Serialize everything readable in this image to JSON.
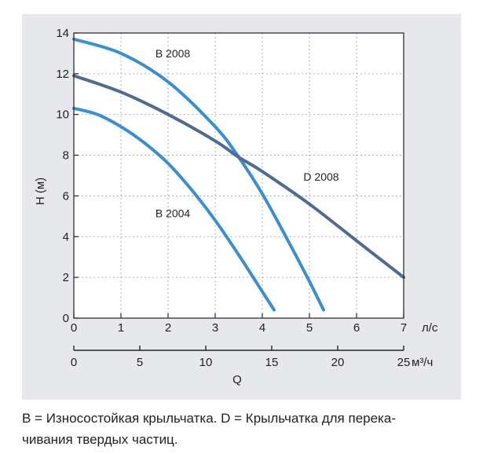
{
  "chart_data": {
    "type": "line",
    "xlabel": "Q",
    "ylabel": "H (м)",
    "x_unit": "л/с",
    "x2_unit": "м³/ч",
    "xlim": [
      0,
      7
    ],
    "x2lim": [
      0,
      25
    ],
    "ylim": [
      0,
      14
    ],
    "x_ticks": [
      0,
      1,
      2,
      3,
      4,
      5,
      6,
      7
    ],
    "x2_ticks": [
      0,
      5,
      10,
      15,
      20,
      25
    ],
    "y_ticks": [
      0,
      2,
      4,
      6,
      8,
      10,
      12,
      14
    ],
    "grid": true,
    "series": [
      {
        "name": "B 2008",
        "color": "#3a8fd1",
        "x": [
          0,
          1,
          2,
          3,
          3.5,
          4,
          4.5,
          5,
          5.3
        ],
        "y": [
          13.7,
          13.0,
          11.6,
          9.4,
          7.9,
          6.1,
          4.0,
          1.8,
          0.4
        ]
      },
      {
        "name": "D 2008",
        "color": "#4e6b92",
        "x": [
          0,
          1,
          2,
          3,
          3.5,
          4,
          5,
          6,
          7
        ],
        "y": [
          11.9,
          11.1,
          10.0,
          8.7,
          7.9,
          7.2,
          5.6,
          3.8,
          2.0
        ]
      },
      {
        "name": "B 2004",
        "color": "#3a8fd1",
        "x": [
          0,
          0.5,
          1,
          1.5,
          2,
          2.5,
          3,
          3.5,
          4,
          4.25
        ],
        "y": [
          10.3,
          10.0,
          9.4,
          8.6,
          7.6,
          6.3,
          4.8,
          3.1,
          1.3,
          0.4
        ]
      }
    ]
  },
  "caption": {
    "line1": "B = Износостойкая крыльчатка. D = Крыльчатка для перека-",
    "line2": "чивания твердых частиц."
  }
}
